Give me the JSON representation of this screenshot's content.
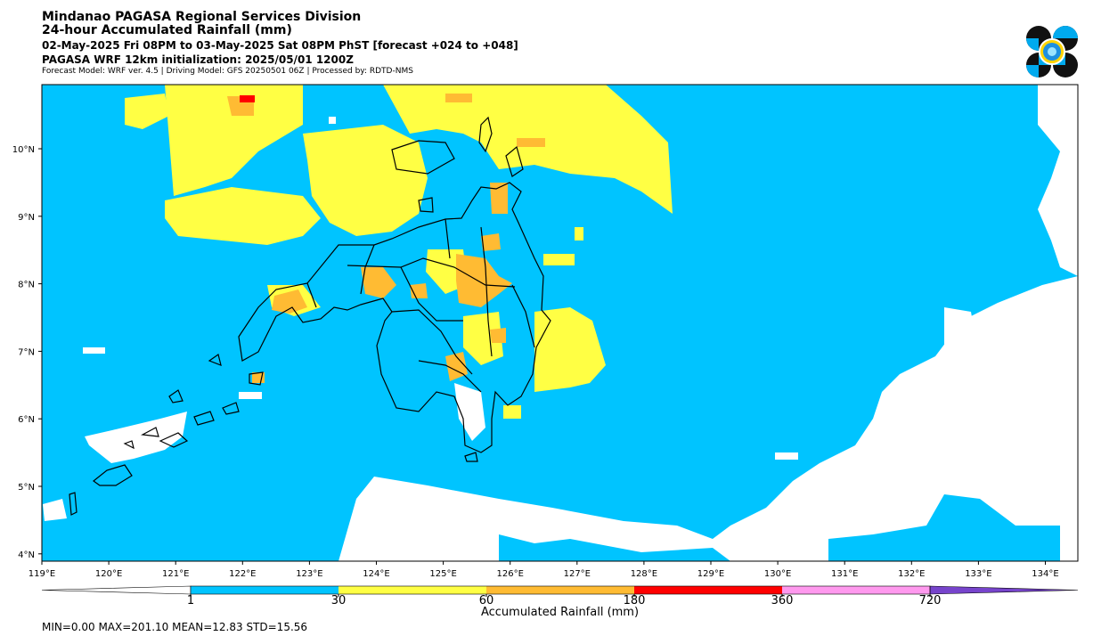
{
  "header": {
    "title": "Mindanao PAGASA Regional Services Division",
    "subtitle": "24-hour Accumulated Rainfall (mm)",
    "period": "02-May-2025 Fri 08PM to 03-May-2025 Sat 08PM PhST [forecast +024 to +048]",
    "init": "PAGASA WRF 12km initialization: 2025/05/01 1200Z",
    "model": "Forecast Model: WRF ver. 4.5 | Driving Model: GFS 20250501 06Z | Processed by: RDTD-NMS"
  },
  "map": {
    "lon_labels": [
      "119°E",
      "120°E",
      "121°E",
      "122°E",
      "123°E",
      "124°E",
      "125°E",
      "126°E",
      "127°E",
      "128°E",
      "129°E",
      "130°E",
      "131°E",
      "132°E",
      "133°E",
      "134°E"
    ],
    "lat_labels": [
      "10°N",
      "9°N",
      "8°N",
      "7°N",
      "6°N",
      "5°N",
      "4°N"
    ]
  },
  "colorbar": {
    "title": "Accumulated Rainfall (mm)",
    "tick_labels": [
      "1",
      "30",
      "60",
      "180",
      "360",
      "720"
    ],
    "colors": [
      "#00c4ff",
      "#ffff44",
      "#ffbb33",
      "#ff0000",
      "#ff99ee",
      "#7744cc"
    ]
  },
  "stats": "MIN=0.00   MAX=201.10   MEAN=12.83   STD=15.56",
  "logo_icon": "pagasa-logo-icon"
}
